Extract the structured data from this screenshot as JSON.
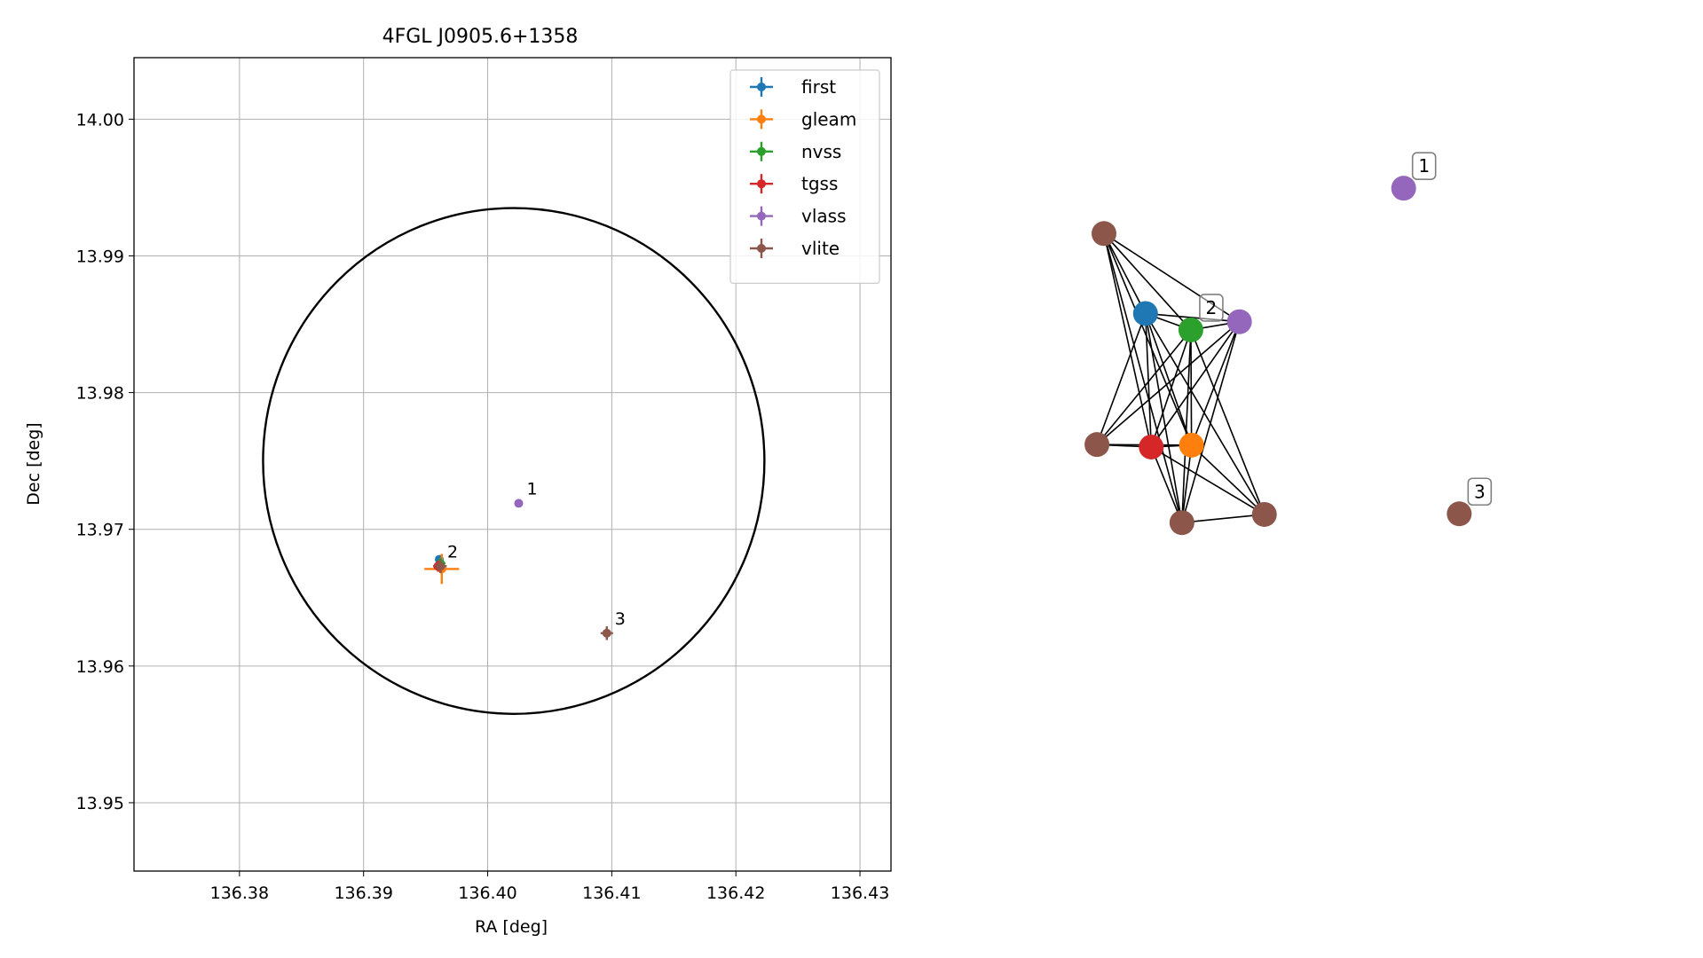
{
  "chart_data": [
    {
      "type": "scatter",
      "title": "4FGL J0905.6+1358",
      "xlabel": "RA [deg]",
      "ylabel": "Dec [deg]",
      "xlim": [
        136.3715,
        136.4325
      ],
      "ylim": [
        13.945,
        14.0045
      ],
      "xticks": [
        136.38,
        136.39,
        136.4,
        136.41,
        136.42,
        136.43
      ],
      "xtick_labels": [
        "136.38",
        "136.39",
        "136.40",
        "136.41",
        "136.42",
        "136.43"
      ],
      "yticks": [
        13.95,
        13.96,
        13.97,
        13.98,
        13.99,
        14.0
      ],
      "ytick_labels": [
        "13.95",
        "13.96",
        "13.97",
        "13.98",
        "13.99",
        "14.00"
      ],
      "grid": true,
      "legend_position": "top-right",
      "error_region": {
        "type": "ellipse",
        "color": "#000000",
        "center": [
          136.4021,
          13.975
        ],
        "semi_axes": [
          0.0202,
          0.0185
        ]
      },
      "series": [
        {
          "name": "first",
          "color": "#1f77b4",
          "points": [
            {
              "x": 136.3961,
              "y": 13.9678,
              "xerr": 0.0001,
              "yerr": 0.0001
            }
          ]
        },
        {
          "name": "gleam",
          "color": "#ff7f0e",
          "points": [
            {
              "x": 136.3963,
              "y": 13.9671,
              "xerr": 0.0014,
              "yerr": 0.0011
            }
          ]
        },
        {
          "name": "nvss",
          "color": "#2ca02c",
          "points": [
            {
              "x": 136.3962,
              "y": 13.9675,
              "xerr": 0.0004,
              "yerr": 0.0004
            }
          ]
        },
        {
          "name": "tgss",
          "color": "#d62728",
          "points": [
            {
              "x": 136.396,
              "y": 13.9673,
              "xerr": 0.0004,
              "yerr": 0.0004
            }
          ]
        },
        {
          "name": "vlass",
          "color": "#9467bd",
          "points": [
            {
              "x": 136.4025,
              "y": 13.9719,
              "xerr": 0.0001,
              "yerr": 0.0001
            }
          ]
        },
        {
          "name": "vlite",
          "color": "#8c564b",
          "points": [
            {
              "x": 136.3962,
              "y": 13.9673,
              "xerr": 0.0005,
              "yerr": 0.0005
            },
            {
              "x": 136.4096,
              "y": 13.9624,
              "xerr": 0.0005,
              "yerr": 0.0005
            }
          ]
        }
      ],
      "annotations": [
        {
          "text": "1",
          "x": 136.4025,
          "y": 13.9719
        },
        {
          "text": "2",
          "x": 136.3961,
          "y": 13.9673
        },
        {
          "text": "3",
          "x": 136.4096,
          "y": 13.9624
        }
      ]
    },
    {
      "type": "network",
      "nodes": [
        {
          "id": "n1",
          "catalog": "vlite",
          "color": "#8c564b",
          "x": 0.075,
          "y": 0.77
        },
        {
          "id": "n2",
          "catalog": "first",
          "color": "#1f77b4",
          "x": 0.14,
          "y": 0.643
        },
        {
          "id": "n3",
          "catalog": "nvss",
          "color": "#2ca02c",
          "x": 0.211,
          "y": 0.617
        },
        {
          "id": "n4",
          "catalog": "vlass",
          "color": "#9467bd",
          "x": 0.287,
          "y": 0.63
        },
        {
          "id": "n5",
          "catalog": "vlite",
          "color": "#8c564b",
          "x": 0.064,
          "y": 0.435
        },
        {
          "id": "n6",
          "catalog": "tgss",
          "color": "#d62728",
          "x": 0.149,
          "y": 0.431
        },
        {
          "id": "n7",
          "catalog": "gleam",
          "color": "#ff7f0e",
          "x": 0.212,
          "y": 0.434
        },
        {
          "id": "n8",
          "catalog": "vlite",
          "color": "#8c564b",
          "x": 0.197,
          "y": 0.311
        },
        {
          "id": "n9",
          "catalog": "vlite",
          "color": "#8c564b",
          "x": 0.326,
          "y": 0.324
        },
        {
          "id": "n10",
          "catalog": "vlass",
          "color": "#9467bd",
          "x": 0.544,
          "y": 0.842
        },
        {
          "id": "n11",
          "catalog": "vlite",
          "color": "#8c564b",
          "x": 0.631,
          "y": 0.325
        }
      ],
      "edges": [
        [
          "n1",
          "n2"
        ],
        [
          "n1",
          "n3"
        ],
        [
          "n1",
          "n4"
        ],
        [
          "n1",
          "n6"
        ],
        [
          "n1",
          "n7"
        ],
        [
          "n1",
          "n8"
        ],
        [
          "n2",
          "n3"
        ],
        [
          "n2",
          "n4"
        ],
        [
          "n2",
          "n5"
        ],
        [
          "n2",
          "n6"
        ],
        [
          "n2",
          "n7"
        ],
        [
          "n2",
          "n8"
        ],
        [
          "n2",
          "n9"
        ],
        [
          "n3",
          "n4"
        ],
        [
          "n3",
          "n5"
        ],
        [
          "n3",
          "n6"
        ],
        [
          "n3",
          "n7"
        ],
        [
          "n3",
          "n8"
        ],
        [
          "n3",
          "n9"
        ],
        [
          "n4",
          "n5"
        ],
        [
          "n4",
          "n6"
        ],
        [
          "n4",
          "n7"
        ],
        [
          "n4",
          "n8"
        ],
        [
          "n5",
          "n6"
        ],
        [
          "n5",
          "n7"
        ],
        [
          "n6",
          "n7"
        ],
        [
          "n6",
          "n8"
        ],
        [
          "n6",
          "n9"
        ],
        [
          "n7",
          "n8"
        ],
        [
          "n7",
          "n9"
        ],
        [
          "n8",
          "n9"
        ]
      ],
      "labels": [
        {
          "text": "1",
          "node": "n10"
        },
        {
          "text": "2",
          "node": "n3"
        },
        {
          "text": "3",
          "node": "n11"
        }
      ]
    }
  ]
}
